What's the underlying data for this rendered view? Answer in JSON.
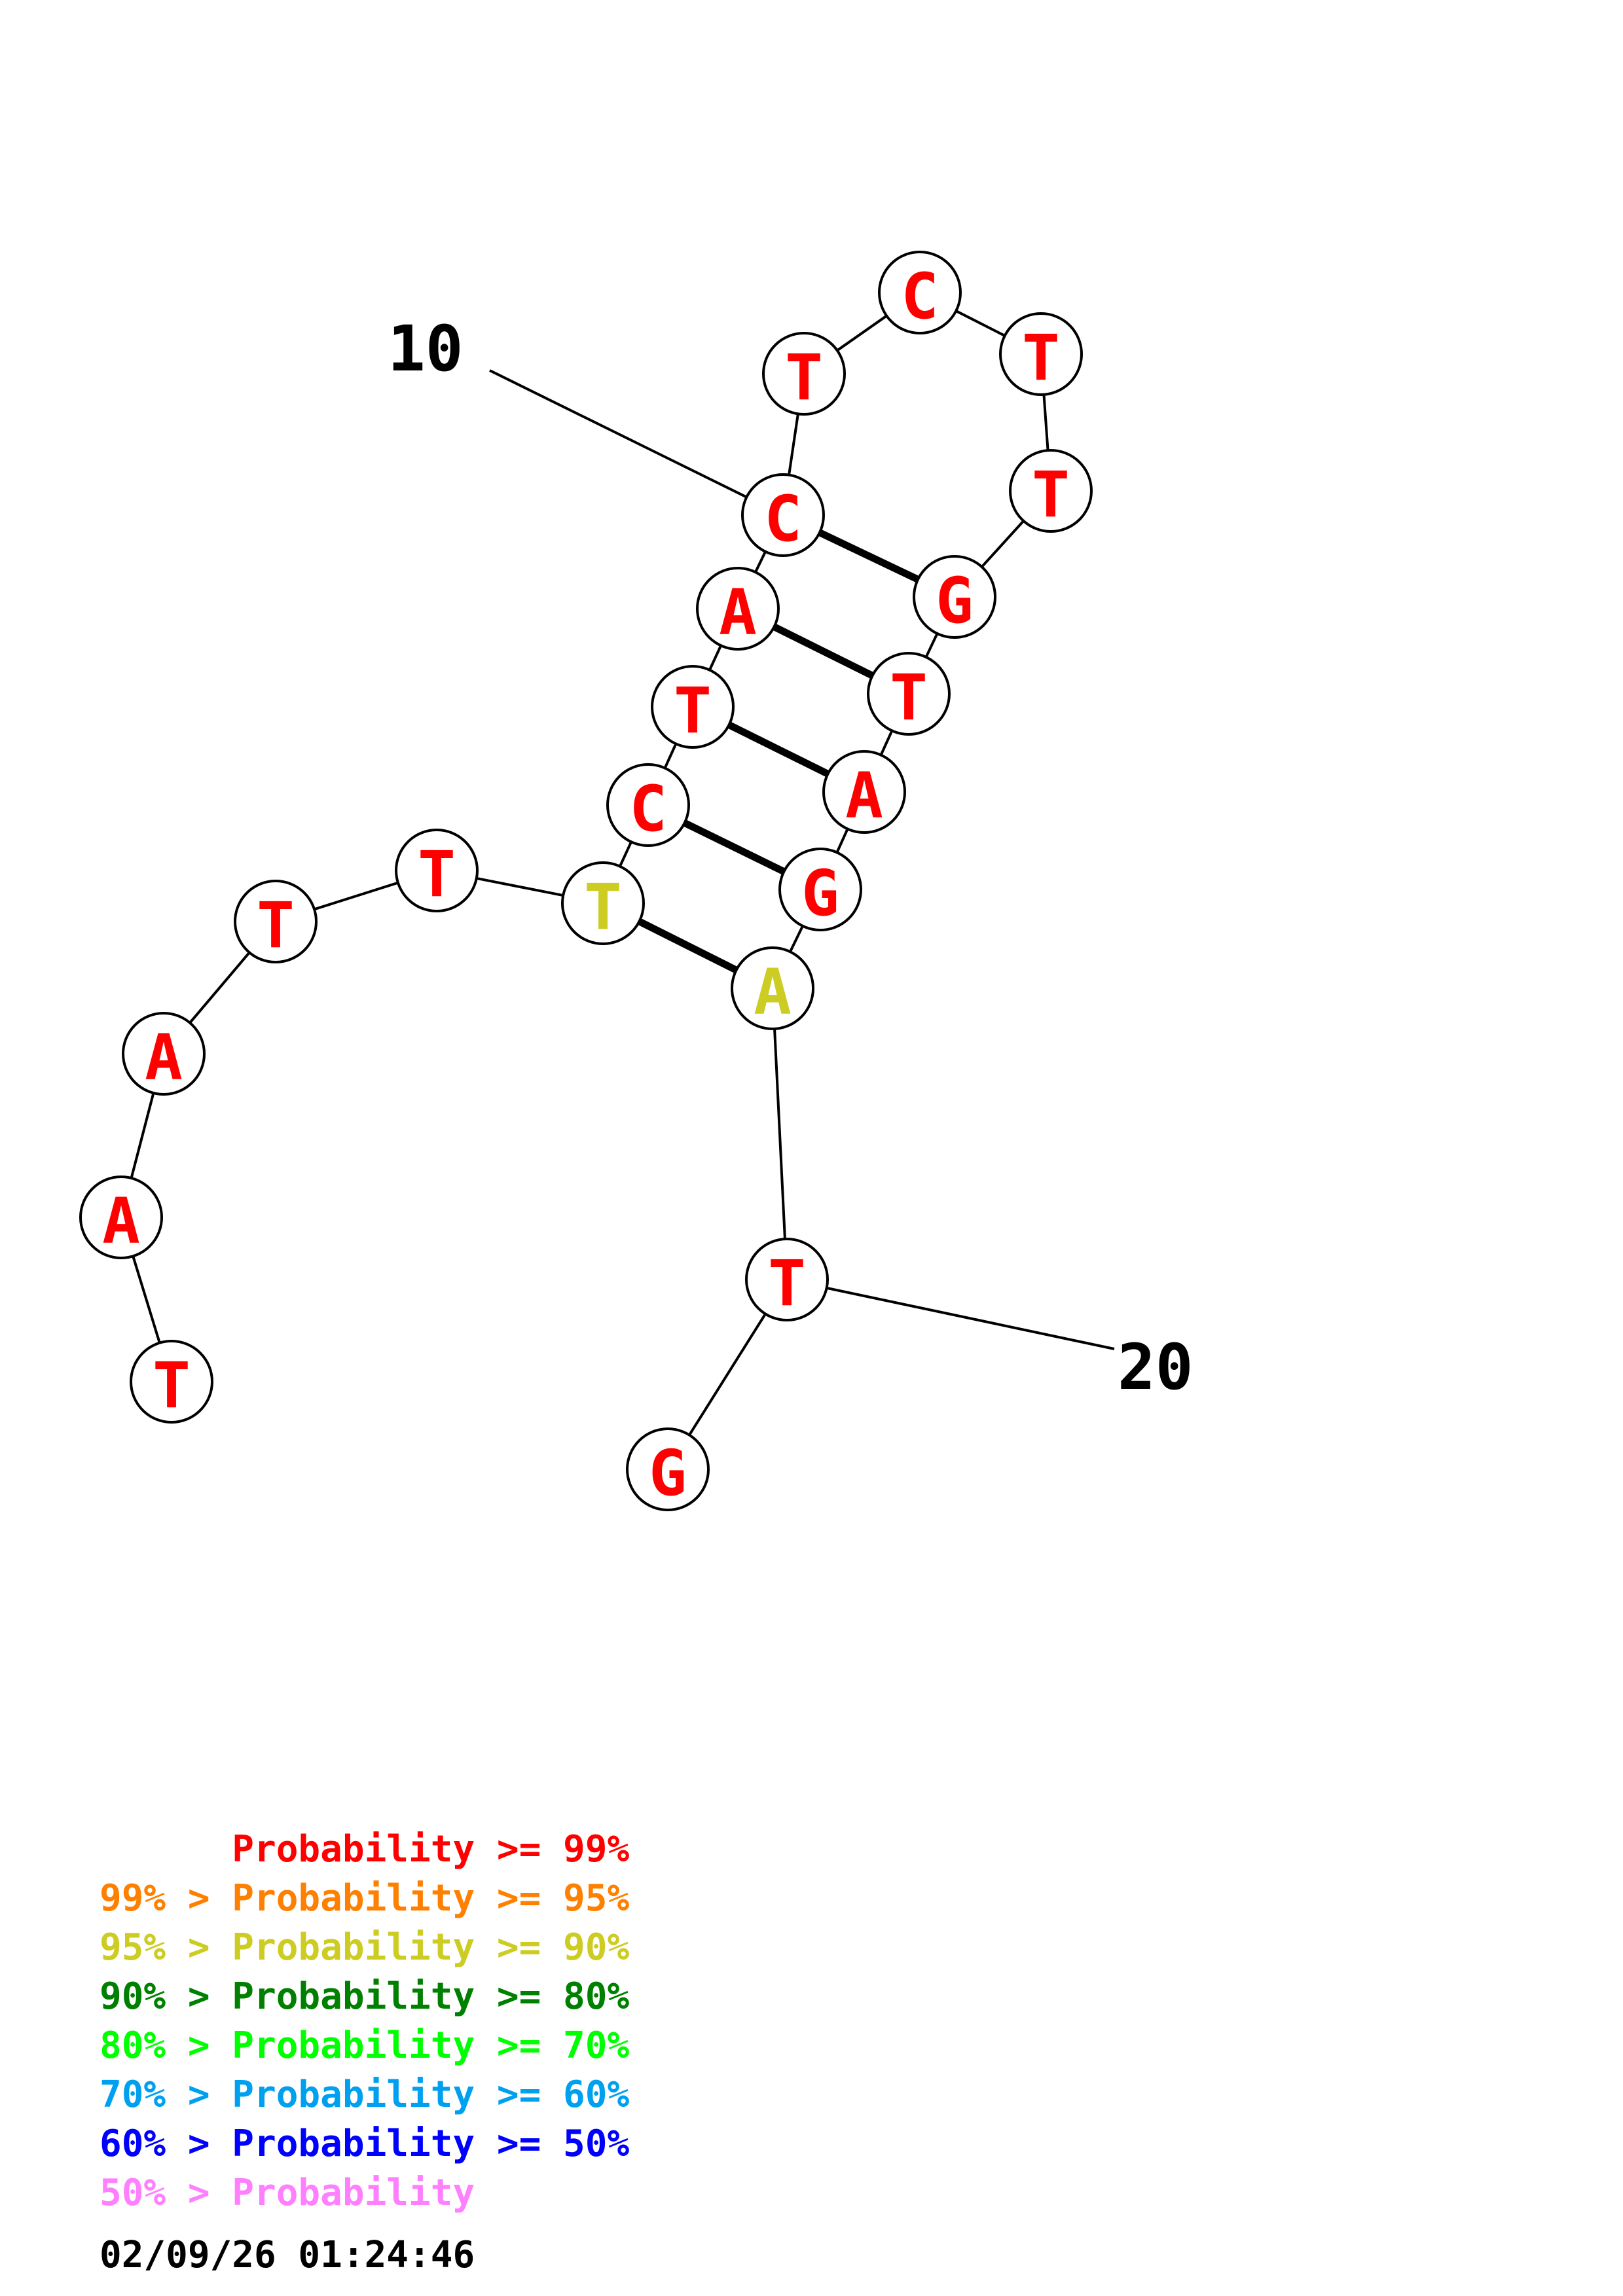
{
  "colors": {
    "red": "#ff0000",
    "yellow": "#cccc22"
  },
  "position_labels": [
    {
      "text": "10",
      "nucleotide_index": 9
    },
    {
      "text": "20",
      "nucleotide_index": 19
    }
  ],
  "nucleotides": [
    {
      "index": 1,
      "base": "T",
      "color": "#ff0000"
    },
    {
      "index": 2,
      "base": "A",
      "color": "#ff0000"
    },
    {
      "index": 3,
      "base": "A",
      "color": "#ff0000"
    },
    {
      "index": 4,
      "base": "T",
      "color": "#ff0000"
    },
    {
      "index": 5,
      "base": "T",
      "color": "#ff0000"
    },
    {
      "index": 6,
      "base": "T",
      "color": "#cccc22"
    },
    {
      "index": 7,
      "base": "C",
      "color": "#ff0000"
    },
    {
      "index": 8,
      "base": "T",
      "color": "#ff0000"
    },
    {
      "index": 9,
      "base": "A",
      "color": "#ff0000"
    },
    {
      "index": 10,
      "base": "C",
      "color": "#ff0000"
    },
    {
      "index": 11,
      "base": "T",
      "color": "#ff0000"
    },
    {
      "index": 12,
      "base": "C",
      "color": "#ff0000"
    },
    {
      "index": 13,
      "base": "T",
      "color": "#ff0000"
    },
    {
      "index": 14,
      "base": "T",
      "color": "#ff0000"
    },
    {
      "index": 15,
      "base": "G",
      "color": "#ff0000"
    },
    {
      "index": 16,
      "base": "T",
      "color": "#ff0000"
    },
    {
      "index": 17,
      "base": "A",
      "color": "#ff0000"
    },
    {
      "index": 18,
      "base": "G",
      "color": "#ff0000"
    },
    {
      "index": 19,
      "base": "A",
      "color": "#cccc22"
    },
    {
      "index": 20,
      "base": "T",
      "color": "#ff0000"
    },
    {
      "index": 21,
      "base": "G",
      "color": "#ff0000"
    }
  ],
  "base_pairs": [
    [
      6,
      19
    ],
    [
      7,
      18
    ],
    [
      8,
      17
    ],
    [
      9,
      16
    ],
    [
      10,
      15
    ]
  ],
  "legend": [
    {
      "text": "      Probability >= 99%",
      "color": "#ff0000"
    },
    {
      "text": "99% > Probability >= 95%",
      "color": "#ff8000"
    },
    {
      "text": "95% > Probability >= 90%",
      "color": "#cccc22"
    },
    {
      "text": "90% > Probability >= 80%",
      "color": "#008000"
    },
    {
      "text": "80% > Probability >= 70%",
      "color": "#00ff00"
    },
    {
      "text": "70% > Probability >= 60%",
      "color": "#00a0f0"
    },
    {
      "text": "60% > Probability >= 50%",
      "color": "#0000ff"
    },
    {
      "text": "50% > Probability",
      "color": "#ff80ff"
    }
  ],
  "timestamp": "02/09/26 01:24:46"
}
